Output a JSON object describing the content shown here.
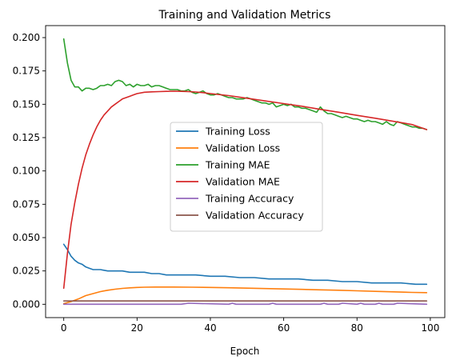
{
  "chart_data": {
    "type": "line",
    "title": "Training and Validation Metrics",
    "xlabel": "Epoch",
    "ylabel": "",
    "xlim": [
      -4.95,
      103.95
    ],
    "ylim": [
      -0.01,
      0.209
    ],
    "xticks": [
      0,
      20,
      40,
      60,
      80,
      100
    ],
    "yticks": [
      0.0,
      0.025,
      0.05,
      0.075,
      0.1,
      0.125,
      0.15,
      0.175,
      0.2
    ],
    "ytick_labels": [
      "0.000",
      "0.025",
      "0.050",
      "0.075",
      "0.100",
      "0.125",
      "0.150",
      "0.175",
      "0.200"
    ],
    "grid": false,
    "legend_position": "center-right",
    "series": [
      {
        "name": "Training Loss",
        "color": "#1f77b4",
        "x": [
          0,
          1,
          2,
          3,
          4,
          5,
          6,
          7,
          8,
          9,
          10,
          12,
          14,
          16,
          18,
          20,
          22,
          24,
          26,
          28,
          30,
          33,
          36,
          40,
          44,
          48,
          52,
          56,
          60,
          64,
          68,
          72,
          76,
          80,
          84,
          88,
          92,
          96,
          99
        ],
        "y": [
          0.045,
          0.041,
          0.036,
          0.033,
          0.031,
          0.03,
          0.028,
          0.027,
          0.026,
          0.026,
          0.026,
          0.025,
          0.025,
          0.025,
          0.024,
          0.024,
          0.024,
          0.023,
          0.023,
          0.022,
          0.022,
          0.022,
          0.022,
          0.021,
          0.021,
          0.02,
          0.02,
          0.019,
          0.019,
          0.019,
          0.018,
          0.018,
          0.017,
          0.017,
          0.016,
          0.016,
          0.016,
          0.015,
          0.015
        ]
      },
      {
        "name": "Validation Loss",
        "color": "#ff7f0e",
        "x": [
          0,
          2,
          4,
          6,
          8,
          10,
          12,
          14,
          16,
          18,
          20,
          22,
          25,
          30,
          35,
          40,
          45,
          50,
          55,
          60,
          65,
          70,
          75,
          80,
          85,
          90,
          95,
          99
        ],
        "y": [
          0.0005,
          0.002,
          0.004,
          0.0065,
          0.008,
          0.0095,
          0.0105,
          0.0113,
          0.0119,
          0.0123,
          0.0126,
          0.0128,
          0.0129,
          0.0129,
          0.0128,
          0.0126,
          0.0124,
          0.0121,
          0.0118,
          0.0115,
          0.0112,
          0.0108,
          0.0105,
          0.0101,
          0.0097,
          0.0093,
          0.0089,
          0.0087
        ]
      },
      {
        "name": "Training MAE",
        "color": "#2ca02c",
        "x": [
          0,
          1,
          2,
          3,
          4,
          5,
          6,
          7,
          8,
          9,
          10,
          11,
          12,
          13,
          14,
          15,
          16,
          17,
          18,
          19,
          20,
          21,
          22,
          23,
          24,
          25,
          26,
          27,
          28,
          29,
          30,
          31,
          32,
          33,
          34,
          35,
          36,
          37,
          38,
          39,
          40,
          41,
          42,
          43,
          44,
          45,
          46,
          47,
          48,
          49,
          50,
          51,
          52,
          53,
          54,
          55,
          56,
          57,
          58,
          59,
          60,
          61,
          62,
          63,
          64,
          65,
          66,
          67,
          68,
          69,
          70,
          71,
          72,
          73,
          74,
          75,
          76,
          77,
          78,
          79,
          80,
          81,
          82,
          83,
          84,
          85,
          86,
          87,
          88,
          89,
          90,
          91,
          92,
          93,
          94,
          95,
          96,
          97,
          98,
          99
        ],
        "y": [
          0.199,
          0.181,
          0.168,
          0.163,
          0.163,
          0.16,
          0.162,
          0.162,
          0.161,
          0.162,
          0.164,
          0.164,
          0.165,
          0.164,
          0.167,
          0.168,
          0.167,
          0.164,
          0.165,
          0.163,
          0.165,
          0.164,
          0.164,
          0.165,
          0.163,
          0.164,
          0.164,
          0.163,
          0.162,
          0.161,
          0.161,
          0.161,
          0.16,
          0.16,
          0.161,
          0.159,
          0.158,
          0.159,
          0.16,
          0.158,
          0.157,
          0.157,
          0.158,
          0.157,
          0.156,
          0.155,
          0.155,
          0.154,
          0.154,
          0.154,
          0.155,
          0.154,
          0.153,
          0.152,
          0.151,
          0.151,
          0.15,
          0.151,
          0.148,
          0.149,
          0.15,
          0.149,
          0.15,
          0.148,
          0.148,
          0.147,
          0.147,
          0.146,
          0.145,
          0.144,
          0.148,
          0.145,
          0.143,
          0.143,
          0.142,
          0.141,
          0.14,
          0.141,
          0.14,
          0.139,
          0.139,
          0.138,
          0.137,
          0.138,
          0.137,
          0.137,
          0.136,
          0.135,
          0.137,
          0.135,
          0.134,
          0.137,
          0.136,
          0.135,
          0.134,
          0.133,
          0.133,
          0.132,
          0.132,
          0.131
        ]
      },
      {
        "name": "Validation MAE",
        "color": "#d62728",
        "x": [
          0,
          1,
          2,
          3,
          4,
          5,
          6,
          7,
          8,
          9,
          10,
          11,
          12,
          13,
          14,
          15,
          16,
          17,
          18,
          19,
          20,
          22,
          24,
          26,
          28,
          30,
          32,
          34,
          36,
          38,
          40,
          45,
          50,
          55,
          60,
          65,
          70,
          75,
          80,
          85,
          90,
          95,
          99
        ],
        "y": [
          0.012,
          0.038,
          0.06,
          0.076,
          0.09,
          0.102,
          0.112,
          0.12,
          0.127,
          0.133,
          0.138,
          0.142,
          0.145,
          0.148,
          0.15,
          0.152,
          0.154,
          0.155,
          0.156,
          0.157,
          0.158,
          0.159,
          0.1593,
          0.1595,
          0.1597,
          0.1598,
          0.1597,
          0.1595,
          0.1592,
          0.1587,
          0.158,
          0.1565,
          0.1545,
          0.1525,
          0.1505,
          0.1485,
          0.1462,
          0.144,
          0.1417,
          0.1395,
          0.1372,
          0.1348,
          0.131
        ]
      },
      {
        "name": "Training Accuracy",
        "color": "#9467bd",
        "x": [
          0,
          30,
          32,
          34,
          45,
          46,
          47,
          56,
          57,
          58,
          70,
          71,
          72,
          75,
          76,
          80,
          81,
          82,
          85,
          86,
          87,
          90,
          91,
          99
        ],
        "y": [
          0.0,
          0.0,
          0.0,
          0.0008,
          0.0,
          0.0008,
          0.0,
          0.0,
          0.0008,
          0.0,
          0.0,
          0.0008,
          0.0,
          0.0,
          0.0008,
          0.0,
          0.0008,
          0.0,
          0.0,
          0.0008,
          0.0,
          0.0,
          0.0008,
          0.0
        ]
      },
      {
        "name": "Validation Accuracy",
        "color": "#8c564b",
        "x": [
          0,
          99
        ],
        "y": [
          0.0025,
          0.0025
        ]
      }
    ]
  }
}
